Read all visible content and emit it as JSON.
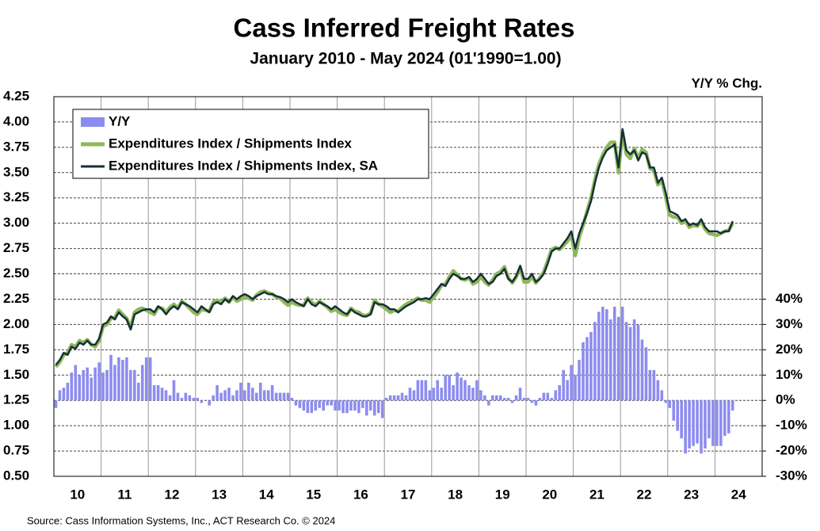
{
  "chart_data": {
    "type": "combo",
    "title": "Cass Inferred Freight Rates",
    "subtitle": "January 2010 - May 2024 (01'1990=1.00)",
    "y2label": "Y/Y % Chg.",
    "source": "Source: Cass Information Systems, Inc., ACT Research Co. © 2024",
    "categories": [
      null,
      null,
      null,
      null,
      null,
      null,
      "10",
      null,
      null,
      null,
      null,
      null,
      null,
      null,
      null,
      null,
      null,
      null,
      "11",
      null,
      null,
      null,
      null,
      null,
      null,
      null,
      null,
      null,
      null,
      null,
      "12",
      null,
      null,
      null,
      null,
      null,
      null,
      null,
      null,
      null,
      null,
      null,
      "13",
      null,
      null,
      null,
      null,
      null,
      null,
      null,
      null,
      null,
      null,
      null,
      "14",
      null,
      null,
      null,
      null,
      null,
      null,
      null,
      null,
      null,
      null,
      null,
      "15",
      null,
      null,
      null,
      null,
      null,
      null,
      null,
      null,
      null,
      null,
      null,
      "16",
      null,
      null,
      null,
      null,
      null,
      null,
      null,
      null,
      null,
      null,
      null,
      "17",
      null,
      null,
      null,
      null,
      null,
      null,
      null,
      null,
      null,
      null,
      null,
      "18",
      null,
      null,
      null,
      null,
      null,
      null,
      null,
      null,
      null,
      null,
      null,
      "19",
      null,
      null,
      null,
      null,
      null,
      null,
      null,
      null,
      null,
      null,
      null,
      "20",
      null,
      null,
      null,
      null,
      null,
      null,
      null,
      null,
      null,
      null,
      null,
      "21",
      null,
      null,
      null,
      null,
      null,
      null,
      null,
      null,
      null,
      null,
      null,
      "22",
      null,
      null,
      null,
      null,
      null,
      null,
      null,
      null,
      null,
      null,
      null,
      "23",
      null,
      null,
      null,
      null,
      null,
      null,
      null,
      null,
      null,
      null,
      null,
      "24",
      null,
      null,
      null,
      null,
      null
    ],
    "series": [
      {
        "name": "Y/Y",
        "type": "bar",
        "axis": "y2",
        "color": "#8c8cf0",
        "values": [
          -3,
          4,
          5,
          7,
          11,
          14,
          10,
          12,
          13,
          9,
          13,
          15,
          11,
          12,
          18,
          14,
          17,
          16,
          17,
          12,
          12,
          7,
          14,
          17,
          17,
          6,
          6,
          5,
          4,
          2,
          8,
          3,
          1,
          3,
          2,
          1,
          1,
          -1,
          0,
          -2,
          2,
          6,
          3,
          4,
          5,
          2,
          4,
          7,
          4,
          7,
          5,
          3,
          7,
          4,
          4,
          6,
          3,
          3,
          3,
          3,
          1,
          -2,
          -3,
          -4,
          -5,
          -5,
          -4,
          -3,
          -4,
          -2,
          -2,
          -4,
          -4,
          -5,
          -5,
          -4,
          -4,
          -5,
          -3,
          -6,
          -4,
          -6,
          -5,
          -7,
          1,
          2,
          2,
          2,
          3,
          2,
          5,
          4,
          8,
          8,
          8,
          4,
          5,
          8,
          5,
          10,
          10,
          6,
          11,
          9,
          8,
          6,
          5,
          8,
          4,
          2,
          -2,
          2,
          2,
          2,
          1,
          1,
          -1,
          2,
          5,
          1,
          1,
          -1,
          -2,
          1,
          3,
          3,
          1,
          4,
          6,
          12,
          8,
          14,
          10,
          16,
          23,
          25,
          27,
          31,
          35,
          37,
          36,
          32,
          37,
          33,
          37,
          31,
          29,
          32,
          30,
          24,
          21,
          12,
          12,
          8,
          4,
          -1,
          -3,
          -8,
          -12,
          -15,
          -21,
          -19,
          -18,
          -17,
          -21,
          -19,
          -15,
          -18,
          -18,
          -18,
          -14,
          -13,
          -4,
          null,
          null,
          null,
          null,
          null,
          null,
          null
        ]
      },
      {
        "name": "Expenditures Index / Shipments Index",
        "type": "line",
        "color": "#8fb85a",
        "values": [
          1.58,
          1.63,
          1.7,
          1.72,
          1.8,
          1.78,
          1.84,
          1.82,
          1.85,
          1.8,
          1.78,
          1.84,
          1.98,
          2.0,
          2.06,
          2.07,
          2.14,
          2.1,
          2.06,
          1.97,
          2.12,
          2.15,
          2.16,
          2.14,
          2.12,
          2.1,
          2.17,
          2.16,
          2.12,
          2.17,
          2.2,
          2.16,
          2.23,
          2.2,
          2.16,
          2.12,
          2.1,
          2.15,
          2.14,
          2.13,
          2.22,
          2.24,
          2.22,
          2.26,
          2.22,
          2.27,
          2.23,
          2.25,
          2.27,
          2.26,
          2.24,
          2.29,
          2.32,
          2.33,
          2.31,
          2.3,
          2.27,
          2.26,
          2.22,
          2.19,
          2.22,
          2.2,
          2.19,
          2.19,
          2.26,
          2.22,
          2.19,
          2.23,
          2.2,
          2.17,
          2.13,
          2.15,
          2.12,
          2.1,
          2.09,
          2.16,
          2.13,
          2.12,
          2.09,
          2.09,
          2.11,
          2.24,
          2.2,
          2.18,
          2.15,
          2.12,
          2.14,
          2.13,
          2.17,
          2.2,
          2.22,
          2.24,
          2.26,
          2.24,
          2.24,
          2.22,
          2.27,
          2.32,
          2.39,
          2.4,
          2.47,
          2.53,
          2.49,
          2.45,
          2.44,
          2.46,
          2.4,
          2.42,
          2.47,
          2.42,
          2.39,
          2.44,
          2.5,
          2.52,
          2.57,
          2.46,
          2.41,
          2.47,
          2.56,
          2.42,
          2.42,
          2.47,
          2.41,
          2.46,
          2.52,
          2.63,
          2.74,
          2.76,
          2.74,
          2.78,
          2.82,
          2.88,
          2.68,
          2.86,
          2.98,
          3.12,
          3.25,
          3.43,
          3.58,
          3.68,
          3.75,
          3.8,
          3.8,
          3.5,
          3.9,
          3.68,
          3.64,
          3.74,
          3.64,
          3.73,
          3.7,
          3.54,
          3.52,
          3.38,
          3.42,
          3.26,
          3.08,
          3.06,
          3.06,
          3.0,
          3.02,
          2.96,
          2.98,
          2.97,
          3.02,
          2.94,
          2.9,
          2.89,
          2.88,
          2.9,
          2.92,
          2.93,
          3.0,
          null,
          null,
          null,
          null,
          null,
          null,
          null
        ]
      },
      {
        "name": "Expenditures Index / Shipments Index, SA",
        "type": "line",
        "color": "#16303a",
        "values": [
          1.6,
          1.65,
          1.72,
          1.7,
          1.78,
          1.76,
          1.82,
          1.8,
          1.84,
          1.8,
          1.8,
          1.86,
          2.0,
          2.02,
          2.08,
          2.05,
          2.12,
          2.08,
          2.05,
          1.95,
          2.1,
          2.12,
          2.14,
          2.15,
          2.15,
          2.12,
          2.18,
          2.15,
          2.1,
          2.15,
          2.18,
          2.15,
          2.22,
          2.2,
          2.18,
          2.15,
          2.12,
          2.18,
          2.15,
          2.12,
          2.2,
          2.22,
          2.2,
          2.25,
          2.22,
          2.28,
          2.25,
          2.28,
          2.3,
          2.28,
          2.25,
          2.28,
          2.3,
          2.32,
          2.3,
          2.3,
          2.28,
          2.27,
          2.25,
          2.22,
          2.25,
          2.22,
          2.2,
          2.18,
          2.25,
          2.2,
          2.18,
          2.22,
          2.2,
          2.18,
          2.15,
          2.18,
          2.15,
          2.12,
          2.1,
          2.15,
          2.12,
          2.1,
          2.08,
          2.08,
          2.1,
          2.22,
          2.2,
          2.2,
          2.18,
          2.15,
          2.15,
          2.12,
          2.15,
          2.18,
          2.2,
          2.22,
          2.25,
          2.25,
          2.26,
          2.25,
          2.3,
          2.35,
          2.4,
          2.38,
          2.45,
          2.5,
          2.48,
          2.45,
          2.45,
          2.47,
          2.42,
          2.45,
          2.5,
          2.45,
          2.4,
          2.42,
          2.48,
          2.5,
          2.55,
          2.45,
          2.42,
          2.48,
          2.58,
          2.45,
          2.45,
          2.5,
          2.42,
          2.45,
          2.5,
          2.6,
          2.72,
          2.75,
          2.75,
          2.8,
          2.85,
          2.92,
          2.75,
          2.9,
          3.0,
          3.1,
          3.22,
          3.4,
          3.55,
          3.65,
          3.72,
          3.75,
          3.78,
          3.55,
          3.93,
          3.72,
          3.68,
          3.72,
          3.62,
          3.7,
          3.68,
          3.55,
          3.55,
          3.4,
          3.45,
          3.3,
          3.12,
          3.1,
          3.08,
          3.02,
          3.04,
          2.98,
          3.0,
          2.98,
          3.04,
          2.96,
          2.92,
          2.92,
          2.92,
          2.9,
          2.92,
          2.92,
          3.02,
          null,
          null,
          null,
          null,
          null,
          null,
          null
        ]
      }
    ],
    "ylim": [
      0.5,
      4.25
    ],
    "yticks": [
      {
        "value": 0.5,
        "label": "0.50"
      },
      0.75,
      {
        "value": 1,
        "label": "1.00"
      },
      1.25,
      {
        "value": 1.5,
        "label": "1.50"
      },
      1.75,
      {
        "value": 2,
        "label": "2.00"
      },
      2.25,
      {
        "value": 2.5,
        "label": "2.50"
      },
      2.75,
      {
        "value": 3,
        "label": "3.00"
      },
      3.25,
      {
        "value": 3.5,
        "label": "3.50"
      },
      3.75,
      {
        "value": 4,
        "label": "4.00"
      },
      4.25
    ],
    "y2lim": [
      -30,
      120
    ],
    "y2ticks": [
      {
        "value": -30,
        "label": "-30%"
      },
      {
        "value": -20,
        "label": "-20%"
      },
      {
        "value": -10,
        "label": "-10%"
      },
      {
        "value": 0,
        "label": "0%"
      },
      {
        "value": 10,
        "label": "10%"
      },
      {
        "value": 20,
        "label": "20%"
      },
      {
        "value": 30,
        "label": "30%"
      },
      {
        "value": 40,
        "label": "40%"
      }
    ],
    "grid": true,
    "legend": "top-left"
  }
}
